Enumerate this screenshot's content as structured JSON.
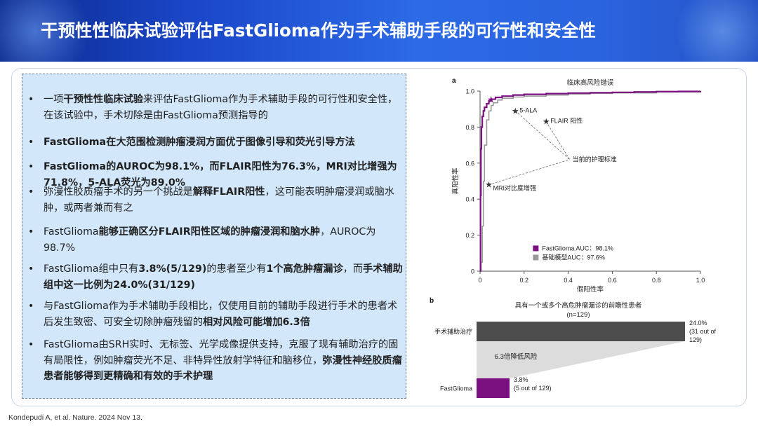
{
  "slide": {
    "title": "干预性性临床试验评估FastGlioma作为手术辅助手段的可行性和安全性",
    "citation": "Kondepudi A, et al. Nature. 2024 Nov 13."
  },
  "bullets": [
    {
      "parts": [
        {
          "t": "一项",
          "b": false
        },
        {
          "t": "干预性性临床试验",
          "b": true
        },
        {
          "t": "来评估FastGlioma作为手术辅助手段的可行性和安全性，在该试验中，手术切除是由FastGlioma预测指导的",
          "b": false
        }
      ]
    },
    {
      "parts": [
        {
          "t": "FastGlioma在大范围检测肿瘤浸润方面优于图像引导和荧光引导方法",
          "b": true
        }
      ]
    },
    {
      "parts": [
        {
          "t": "FastGlioma的AUROC为98.1%，而FLAIR阳性为76.3%，MRI对比增强为71.8%，5-ALA荧光为89.0%",
          "b": true
        }
      ]
    },
    {
      "parts": [
        {
          "t": "弥漫性胶质瘤手术的另一个挑战是",
          "b": false
        },
        {
          "t": "解释FLAIR阳性",
          "b": true
        },
        {
          "t": "，这可能表明肿瘤浸润或脑水肿，或两者兼而有之",
          "b": false
        }
      ]
    },
    {
      "parts": [
        {
          "t": "FastGlioma",
          "b": false
        },
        {
          "t": "能够正确区分FLAIR阳性区域的肿瘤浸润和脑水肿",
          "b": true
        },
        {
          "t": "，AUROC为 98.7%",
          "b": false
        }
      ]
    },
    {
      "parts": [
        {
          "t": "FastGlioma组中只有",
          "b": false
        },
        {
          "t": "3.8%(5/129)",
          "b": true
        },
        {
          "t": "的患者至少有",
          "b": false
        },
        {
          "t": "1个高危肿瘤漏诊",
          "b": true
        },
        {
          "t": "，而",
          "b": false
        },
        {
          "t": "手术辅助组中这一比例为24.0%(31/129)",
          "b": true
        }
      ]
    },
    {
      "parts": [
        {
          "t": "与FastGlioma作为手术辅助手段相比，仅使用目前的辅助手段进行手术的患者术后发生致密、可安全切除肿瘤残留的",
          "b": false
        },
        {
          "t": "相对风险可能增加6.3倍",
          "b": true
        }
      ]
    },
    {
      "parts": [
        {
          "t": "FastGlioma由SRH实时、无标签、光学成像提供支持，克服了现有辅助治疗的固有局限性，例如肿瘤荧光不足、非特异性放射学特征和脑移位，",
          "b": false
        },
        {
          "t": "弥漫性神经胶质瘤患者能够得到更精确和有效的手术护理",
          "b": true
        }
      ]
    }
  ],
  "chart_data": [
    {
      "type": "line",
      "panel_label": "a",
      "title": "临床高风险错误",
      "xlabel": "假阳性率",
      "ylabel": "真阳性率",
      "xlim": [
        0,
        1.0
      ],
      "ylim": [
        0,
        1.0
      ],
      "xticks": [
        "0",
        "0.2",
        "0.4",
        "0.6",
        "0.8",
        "1.0"
      ],
      "yticks": [
        "0",
        "0.2",
        "0.4",
        "0.6",
        "0.8",
        "1.0"
      ],
      "series": [
        {
          "name": "FastGlioma AUC：98.1%",
          "color": "#7b1080",
          "x": [
            0,
            0.002,
            0.004,
            0.006,
            0.01,
            0.015,
            0.02,
            0.03,
            0.04,
            0.05,
            0.07,
            0.1,
            0.15,
            0.2,
            0.3,
            0.4,
            0.5,
            0.6,
            0.7,
            0.8,
            0.9,
            1.0
          ],
          "y": [
            0,
            0.42,
            0.68,
            0.8,
            0.86,
            0.89,
            0.91,
            0.93,
            0.945,
            0.955,
            0.965,
            0.972,
            0.978,
            0.982,
            0.986,
            0.989,
            0.991,
            0.993,
            0.995,
            0.997,
            0.998,
            1.0
          ]
        },
        {
          "name": "基础模型AUC：97.6%",
          "color": "#9a9a9a",
          "x": [
            0,
            0.005,
            0.01,
            0.015,
            0.02,
            0.03,
            0.04,
            0.05,
            0.06,
            0.08,
            0.1,
            0.15,
            0.2,
            0.3,
            0.4,
            0.5,
            0.6,
            0.8,
            1.0
          ],
          "y": [
            0,
            0.05,
            0.25,
            0.5,
            0.7,
            0.84,
            0.89,
            0.92,
            0.935,
            0.95,
            0.96,
            0.967,
            0.972,
            0.978,
            0.983,
            0.987,
            0.99,
            0.995,
            1.0
          ]
        }
      ],
      "markers": [
        {
          "label": "5-ALA",
          "x": 0.16,
          "y": 0.89
        },
        {
          "label": "FLAIR 阳性",
          "x": 0.3,
          "y": 0.83
        },
        {
          "label": "MRI对比度增强",
          "x": 0.04,
          "y": 0.48
        }
      ],
      "standard_of_care_label": "当前的护理标准",
      "legend_position": "bottom-right"
    },
    {
      "type": "bar",
      "panel_label": "b",
      "title": "具有一个或多个高危肿瘤漏诊的前瞻性患者",
      "subtitle": "(n=129)",
      "categories": [
        "手术辅助治疗",
        "FastGlioma"
      ],
      "values": [
        24.0,
        3.8
      ],
      "value_labels": [
        "24.0% (31 out of 129)",
        "3.8% (5 out of 129)"
      ],
      "colors": [
        "#4d4d4d",
        "#7b1080"
      ],
      "annotation": "6.3倍降低风险",
      "orientation": "horizontal"
    }
  ]
}
